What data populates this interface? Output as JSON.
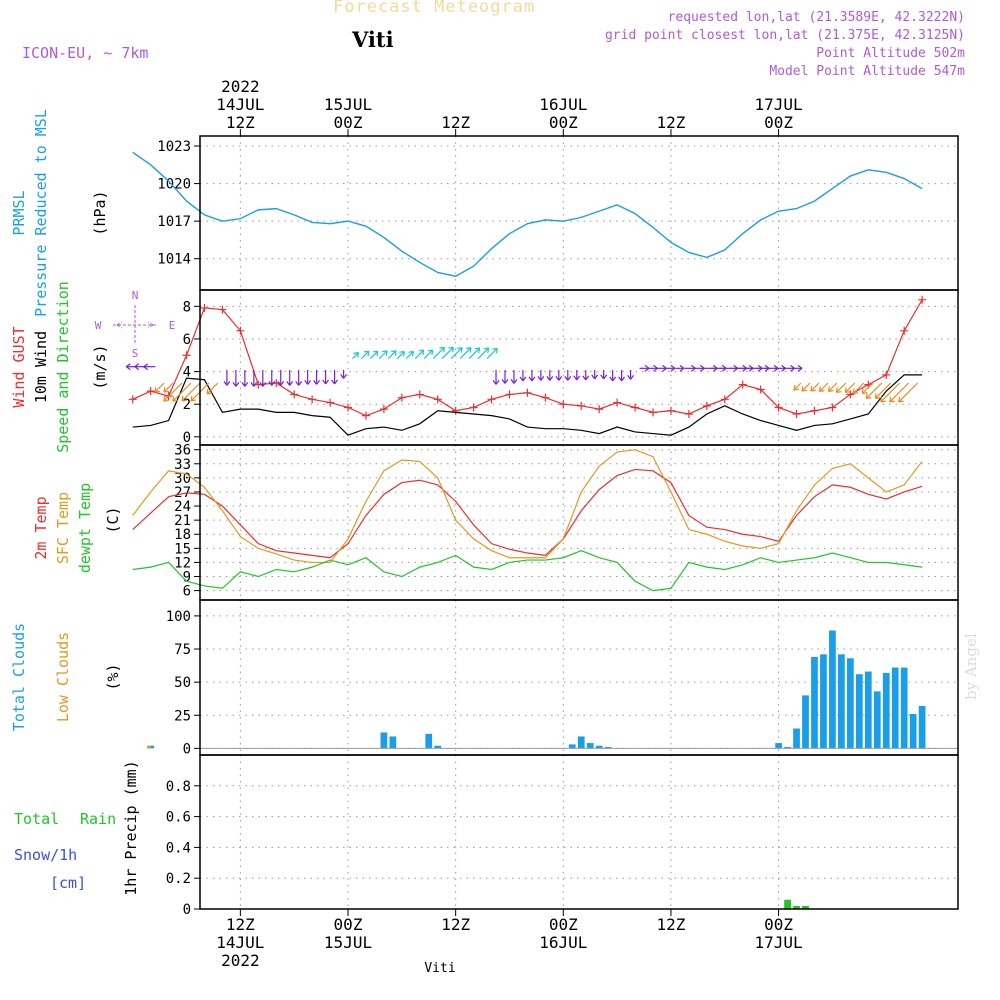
{
  "header": {
    "title": "Forecast Meteogram",
    "location": "Viti",
    "model": "ICON-EU, ~ 7km",
    "info_lines": [
      "requested lon,lat (21.3589E, 42.3222N)",
      "grid point closest lon,lat (21.375E, 42.3125N)",
      "Point Altitude 502m",
      "Model Point Altitude 547m"
    ],
    "footer_label": "Viti",
    "signature": "by Angel"
  },
  "time_axis": {
    "ticks": [
      {
        "hour": 12,
        "line1": "12Z",
        "line2": "14JUL",
        "line3": "2022"
      },
      {
        "hour": 24,
        "line1": "00Z",
        "line2": "15JUL",
        "line3": ""
      },
      {
        "hour": 36,
        "line1": "12Z",
        "line2": "",
        "line3": ""
      },
      {
        "hour": 48,
        "line1": "00Z",
        "line2": "16JUL",
        "line3": ""
      },
      {
        "hour": 60,
        "line1": "12Z",
        "line2": "",
        "line3": ""
      },
      {
        "hour": 72,
        "line1": "00Z",
        "line2": "17JUL",
        "line3": ""
      }
    ],
    "top_year": "2022"
  },
  "colors": {
    "pressure": "#1a9ee8",
    "gust": "#e83030",
    "wind": "#000000",
    "temp2m": "#e83030",
    "sfc": "#e09a20",
    "dewpt": "#22c42a",
    "total_cloud": "#1a9ee8",
    "low_cloud": "#e09a20",
    "rain": "#22c42a",
    "snow": "#3a50e8",
    "purple": "#b05ad8",
    "arrow_purple": "#7a20d8",
    "arrow_cyan": "#18c8c8",
    "arrow_orange": "#e88a20"
  },
  "panels": {
    "pressure": {
      "label1": "PRMSL",
      "label2": "Pressure Reduced to MSL",
      "unit": "(hPa)"
    },
    "wind": {
      "label_gust": "Wind GUST",
      "label_wind": "10m Wind",
      "label_dir": "Speed and Direction",
      "unit": "(m/s)",
      "compass": {
        "n": "N",
        "s": "S",
        "w": "W",
        "e": "E"
      }
    },
    "temp": {
      "label1": "2m Temp",
      "label2": "SFC Temp",
      "label3": "dewpt Temp",
      "unit": "(C)"
    },
    "cloud": {
      "label1": "Total Clouds",
      "label2": "Low Clouds",
      "unit": "(%)"
    },
    "precip": {
      "label_rain1": "Total",
      "label_rain2": "Rain",
      "label_snow": "Snow/1h",
      "label_snow_unit": "[cm]",
      "label_y": "1hr Precip (mm)"
    }
  },
  "chart_data": [
    {
      "type": "line",
      "title": "PRMSL",
      "ylabel": "Pressure Reduced to MSL (hPa)",
      "ylim": [
        1011.5,
        1023.8
      ],
      "yticks": [
        1014,
        1017,
        1020,
        1023
      ],
      "x": [
        0,
        2,
        4,
        6,
        8,
        10,
        12,
        14,
        16,
        18,
        20,
        22,
        24,
        26,
        28,
        30,
        32,
        34,
        36,
        38,
        40,
        42,
        44,
        46,
        48,
        50,
        52,
        54,
        56,
        58,
        60,
        62,
        64,
        66,
        68,
        70,
        72,
        74,
        76,
        78,
        80,
        82,
        84,
        86,
        88
      ],
      "series": [
        {
          "name": "PRMSL",
          "values": [
            1022.5,
            1021.5,
            1020.2,
            1018.6,
            1017.5,
            1017.0,
            1017.2,
            1017.9,
            1018.0,
            1017.5,
            1016.9,
            1016.8,
            1017.0,
            1016.6,
            1015.7,
            1014.6,
            1013.7,
            1012.9,
            1012.6,
            1013.4,
            1014.8,
            1016.0,
            1016.8,
            1017.1,
            1017.0,
            1017.3,
            1017.8,
            1018.3,
            1017.6,
            1016.5,
            1015.3,
            1014.5,
            1014.1,
            1014.7,
            1016.0,
            1017.1,
            1017.8,
            1018.0,
            1018.6,
            1019.6,
            1020.6,
            1021.1,
            1020.9,
            1020.4,
            1019.6
          ]
        }
      ]
    },
    {
      "type": "line",
      "title": "Wind GUST / 10m Wind",
      "ylabel": "Speed and Direction (m/s)",
      "ylim": [
        -0.5,
        9.0
      ],
      "yticks": [
        0,
        2,
        4,
        6,
        8
      ],
      "x": [
        0,
        2,
        4,
        6,
        8,
        10,
        12,
        14,
        16,
        18,
        20,
        22,
        24,
        26,
        28,
        30,
        32,
        34,
        36,
        38,
        40,
        42,
        44,
        46,
        48,
        50,
        52,
        54,
        56,
        58,
        60,
        62,
        64,
        66,
        68,
        70,
        72,
        74,
        76,
        78,
        80,
        82,
        84,
        86,
        88
      ],
      "series": [
        {
          "name": "Wind GUST",
          "values": [
            2.3,
            2.8,
            2.5,
            5.0,
            7.9,
            7.8,
            6.5,
            3.2,
            3.3,
            2.6,
            2.3,
            2.1,
            1.8,
            1.3,
            1.7,
            2.4,
            2.6,
            2.3,
            1.6,
            1.8,
            2.3,
            2.6,
            2.7,
            2.4,
            2.0,
            1.9,
            1.7,
            2.1,
            1.8,
            1.5,
            1.6,
            1.4,
            1.9,
            2.3,
            3.2,
            2.9,
            1.8,
            1.4,
            1.6,
            1.8,
            2.6,
            3.2,
            3.8,
            6.5,
            8.4
          ]
        },
        {
          "name": "10m Wind",
          "values": [
            0.6,
            0.7,
            1.0,
            3.6,
            3.5,
            1.5,
            1.7,
            1.7,
            1.5,
            1.5,
            1.3,
            1.2,
            0.1,
            0.5,
            0.6,
            0.4,
            0.8,
            1.6,
            1.5,
            1.4,
            1.3,
            1.1,
            0.6,
            0.5,
            0.5,
            0.4,
            0.2,
            0.6,
            0.3,
            0.2,
            0.1,
            0.6,
            1.4,
            1.9,
            1.4,
            1.0,
            0.7,
            0.4,
            0.7,
            0.8,
            1.1,
            1.4,
            2.8,
            3.8,
            3.8
          ]
        }
      ],
      "wind_dir_sectors": [
        {
          "from_hour": 0.0,
          "to_hour": 3.0,
          "dir": "W"
        },
        {
          "from_hour": 3.0,
          "to_hour": 10.0,
          "dir": "SW"
        },
        {
          "from_hour": 10.0,
          "to_hour": 24.0,
          "dir": "S"
        },
        {
          "from_hour": 24.0,
          "to_hour": 40.0,
          "dir": "NE"
        },
        {
          "from_hour": 40.0,
          "to_hour": 56.0,
          "dir": "S"
        },
        {
          "from_hour": 56.0,
          "to_hour": 74.0,
          "dir": "E"
        },
        {
          "from_hour": 74.0,
          "to_hour": 88.0,
          "dir": "SW"
        }
      ]
    },
    {
      "type": "line",
      "title": "Temperature",
      "ylabel": "(C)",
      "ylim": [
        4.0,
        37.0
      ],
      "yticks": [
        6,
        9,
        12,
        15,
        18,
        21,
        24,
        27,
        30,
        33,
        36
      ],
      "x": [
        0,
        2,
        4,
        6,
        8,
        10,
        12,
        14,
        16,
        18,
        20,
        22,
        24,
        26,
        28,
        30,
        32,
        34,
        36,
        38,
        40,
        42,
        44,
        46,
        48,
        50,
        52,
        54,
        56,
        58,
        60,
        62,
        64,
        66,
        68,
        70,
        72,
        74,
        76,
        78,
        80,
        82,
        84,
        86,
        88
      ],
      "series": [
        {
          "name": "2m Temp",
          "values": [
            19.0,
            22.5,
            26.0,
            26.8,
            26.5,
            24.0,
            20.0,
            16.0,
            14.5,
            14.0,
            13.5,
            13.0,
            16.0,
            22.0,
            26.5,
            29.0,
            29.5,
            28.5,
            25.0,
            20.0,
            16.0,
            14.8,
            14.0,
            13.5,
            17.0,
            23.0,
            27.5,
            30.5,
            31.8,
            31.5,
            29.0,
            22.0,
            19.5,
            19.0,
            18.0,
            17.5,
            16.5,
            22.0,
            26.0,
            28.5,
            28.0,
            26.5,
            25.5,
            27.0,
            28.2
          ]
        },
        {
          "name": "SFC Temp",
          "values": [
            22.0,
            27.0,
            31.5,
            30.8,
            28.0,
            23.0,
            17.5,
            15.0,
            13.8,
            12.5,
            12.0,
            12.0,
            17.0,
            25.0,
            31.5,
            33.8,
            33.5,
            30.0,
            21.0,
            17.0,
            14.5,
            13.0,
            13.0,
            13.0,
            17.0,
            27.0,
            32.5,
            35.5,
            36.0,
            34.5,
            27.0,
            19.0,
            18.0,
            16.5,
            15.5,
            15.0,
            16.0,
            23.0,
            28.5,
            32.0,
            33.0,
            30.0,
            27.0,
            28.5,
            33.5
          ]
        },
        {
          "name": "dewpt Temp",
          "values": [
            10.5,
            11.0,
            12.0,
            8.0,
            7.0,
            6.5,
            10.0,
            9.0,
            10.5,
            10.0,
            11.0,
            12.5,
            11.5,
            13.0,
            10.0,
            9.0,
            11.0,
            12.0,
            13.5,
            11.0,
            10.5,
            12.0,
            12.5,
            12.5,
            13.0,
            14.5,
            13.0,
            12.0,
            8.0,
            6.0,
            6.5,
            12.0,
            11.0,
            10.5,
            11.5,
            13.0,
            12.0,
            12.5,
            13.0,
            14.0,
            13.0,
            12.0,
            12.0,
            11.5,
            11.0
          ]
        }
      ]
    },
    {
      "type": "bar",
      "title": "Clouds",
      "ylabel": "(%)",
      "ylim": [
        -5,
        112
      ],
      "yticks": [
        0,
        25,
        50,
        75,
        100
      ],
      "x": [
        2,
        28,
        29,
        33,
        34,
        49,
        50,
        51,
        52,
        53,
        72,
        73,
        74,
        75,
        76,
        77,
        78,
        79,
        80,
        81,
        82,
        83,
        84,
        85,
        86,
        87,
        88
      ],
      "series": [
        {
          "name": "Total Clouds",
          "values": [
            2,
            12,
            9,
            11,
            2,
            3,
            9,
            4,
            2,
            1,
            4,
            1,
            15,
            40,
            69,
            71,
            89,
            71,
            68,
            56,
            58,
            43,
            57,
            61,
            61,
            26,
            32
          ]
        },
        {
          "name": "Low Clouds",
          "values": [
            2,
            0,
            0,
            0,
            0,
            0,
            0,
            0,
            0,
            0,
            0,
            0,
            0,
            0,
            0,
            0,
            0,
            0,
            0,
            0,
            0,
            0,
            0,
            0,
            0,
            0,
            0
          ]
        }
      ]
    },
    {
      "type": "bar",
      "title": "Precipitation",
      "ylabel": "1hr Precip (mm)",
      "ylim": [
        0,
        1.0
      ],
      "yticks": [
        0,
        0.2,
        0.4,
        0.6,
        0.8
      ],
      "x": [
        73,
        74,
        75
      ],
      "series": [
        {
          "name": "Total Rain",
          "values": [
            0.06,
            0.02,
            0.02
          ]
        },
        {
          "name": "Snow/1h",
          "values": [
            0,
            0,
            0
          ]
        }
      ]
    }
  ]
}
